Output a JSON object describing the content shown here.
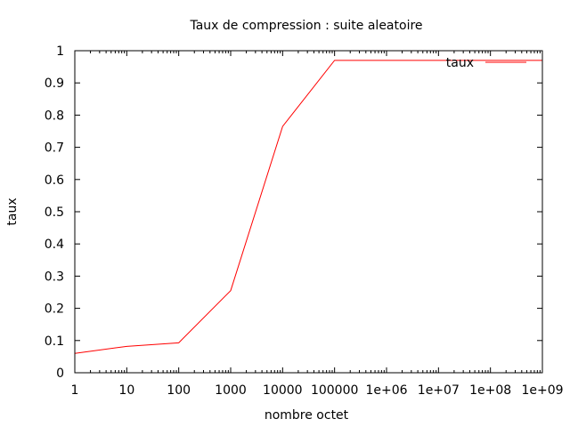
{
  "chart_data": {
    "type": "line",
    "title": "Taux de compression : suite aleatoire",
    "xlabel": "nombre octet",
    "ylabel": "taux",
    "xscale": "log",
    "xlim": [
      1,
      1000000000
    ],
    "ylim": [
      0,
      1
    ],
    "grid": false,
    "legend_position": "top-right",
    "x_ticks": [
      {
        "value": 1,
        "label": "1"
      },
      {
        "value": 10,
        "label": "10"
      },
      {
        "value": 100,
        "label": "100"
      },
      {
        "value": 1000,
        "label": "1000"
      },
      {
        "value": 10000,
        "label": "10000"
      },
      {
        "value": 100000,
        "label": "100000"
      },
      {
        "value": 1000000,
        "label": "1e+06"
      },
      {
        "value": 10000000,
        "label": "1e+07"
      },
      {
        "value": 100000000,
        "label": "1e+08"
      },
      {
        "value": 1000000000,
        "label": "1e+09"
      }
    ],
    "y_ticks": [
      {
        "value": 0,
        "label": "0"
      },
      {
        "value": 0.1,
        "label": "0.1"
      },
      {
        "value": 0.2,
        "label": "0.2"
      },
      {
        "value": 0.3,
        "label": "0.3"
      },
      {
        "value": 0.4,
        "label": "0.4"
      },
      {
        "value": 0.5,
        "label": "0.5"
      },
      {
        "value": 0.6,
        "label": "0.6"
      },
      {
        "value": 0.7,
        "label": "0.7"
      },
      {
        "value": 0.8,
        "label": "0.8"
      },
      {
        "value": 0.9,
        "label": "0.9"
      },
      {
        "value": 1,
        "label": "1"
      }
    ],
    "series": [
      {
        "name": "taux",
        "color": "#ff0000",
        "x": [
          1,
          10,
          100,
          1000,
          10000,
          100000,
          1000000,
          10000000,
          100000000,
          1000000000
        ],
        "y": [
          0.06,
          0.082,
          0.093,
          0.255,
          0.765,
          0.97,
          0.97,
          0.97,
          0.97,
          0.97
        ]
      }
    ]
  }
}
